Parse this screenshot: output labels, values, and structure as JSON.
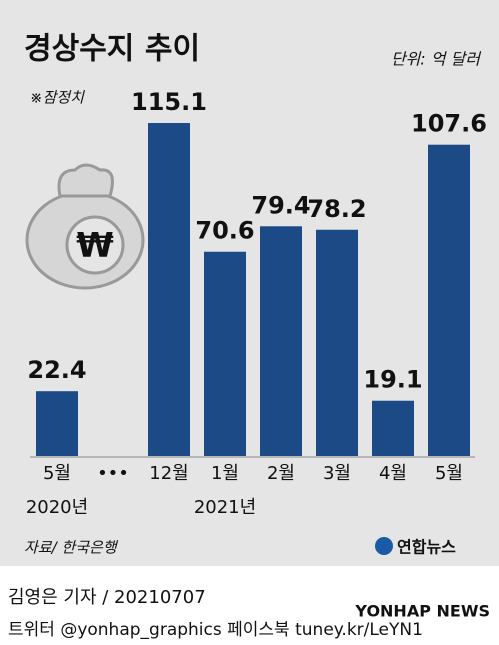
{
  "chart_data": {
    "type": "bar",
    "title": "경상수지 추이",
    "unit": "단위: 억 달러",
    "note": "※잠정치",
    "categories": [
      "5월",
      "•••",
      "12월",
      "1월",
      "2월",
      "3월",
      "4월",
      "5월"
    ],
    "category_years": [
      "2020년",
      null,
      null,
      "2021년",
      null,
      null,
      null,
      null
    ],
    "values": [
      22.4,
      null,
      115.1,
      70.6,
      79.4,
      78.2,
      19.1,
      107.6
    ],
    "color": "#1b4a86",
    "source": "자료/ 한국은행",
    "brand": "연합뉴스"
  },
  "footer": {
    "reporter": "김영은 기자 / 20210707",
    "sns": "트위터 @yonhap_graphics  페이스북 tuney.kr/LeYN1",
    "watermark": "YONHAP NEWS"
  }
}
